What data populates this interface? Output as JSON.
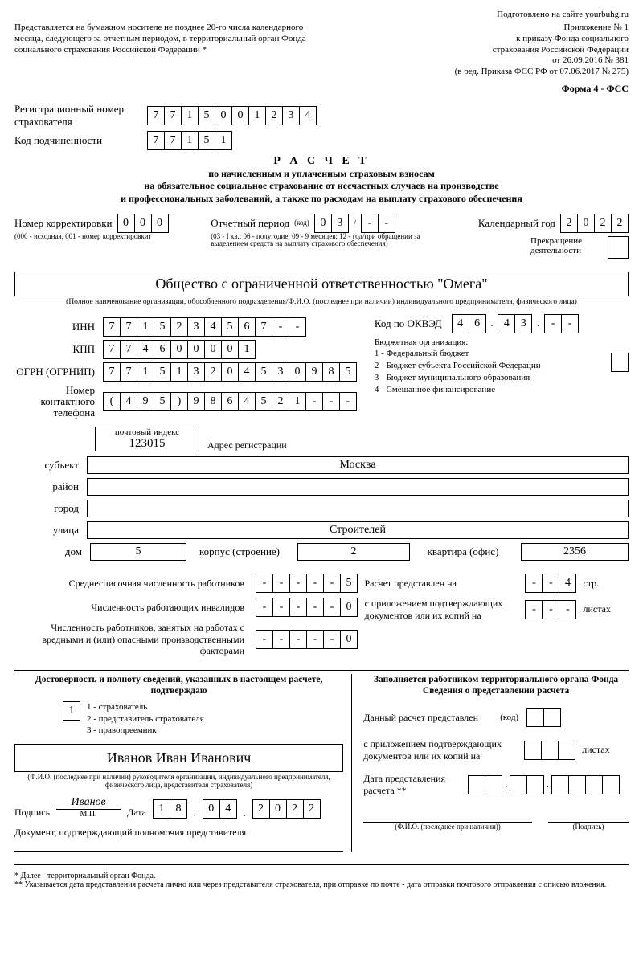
{
  "header": {
    "prepared": "Подготовлено на сайте yourbuhg.ru",
    "left_note": "Представляется на бумажном носителе не позднее 20-го числа календарного месяца, следующего за отчетным периодом, в территориальный орган Фонда социального страхования Российской Федерации *",
    "right_lines": [
      "Приложение № 1",
      "к приказу Фонда социального",
      "страхования Российской Федерации",
      "от 26.09.2016 № 381",
      "(в ред. Приказа ФСС РФ от 07.06.2017 № 275)"
    ],
    "form_name": "Форма 4 - ФСС"
  },
  "reg": {
    "label": "Регистрационный номер страхователя",
    "cells": [
      "7",
      "7",
      "1",
      "5",
      "0",
      "0",
      "1",
      "2",
      "3",
      "4"
    ]
  },
  "sub_code": {
    "label": "Код подчиненности",
    "cells": [
      "7",
      "7",
      "1",
      "5",
      "1"
    ]
  },
  "title": {
    "main": "Р А С Ч Е Т",
    "sub1": "по начисленным и уплаченным страховым взносам",
    "sub2": "на обязательное социальное страхование от несчастных случаев на производстве",
    "sub3": "и профессиональных заболеваний, а также по расходам на выплату страхового обеспечения"
  },
  "correction": {
    "label": "Номер корректировки",
    "cells": [
      "0",
      "0",
      "0"
    ],
    "note": "(000 - исходная, 001 - номер корректировки)"
  },
  "period": {
    "label": "Отчетный период",
    "code_label": "(код)",
    "cells_a": [
      "0",
      "3"
    ],
    "cells_b": [
      "-",
      "-"
    ],
    "note": "(03 - I кв.; 06 - полугодие; 09 - 9 месяцев; 12 - год/при обращении за выделением средств на выплату страхового обеспечения)"
  },
  "year": {
    "label": "Календарный год",
    "cells": [
      "2",
      "0",
      "2",
      "2"
    ]
  },
  "cessation": {
    "label": "Прекращение деятельности"
  },
  "org": {
    "name": "Общество с ограниченной ответственностью \"Омега\"",
    "caption": "(Полное наименование организации, обособленного подразделения/Ф.И.О. (последнее при наличии) индивидуального предпринимателя, физического лица)"
  },
  "inn": {
    "label": "ИНН",
    "cells": [
      "7",
      "7",
      "1",
      "5",
      "2",
      "3",
      "4",
      "5",
      "6",
      "7",
      "-",
      "-"
    ]
  },
  "kpp": {
    "label": "КПП",
    "cells": [
      "7",
      "7",
      "4",
      "6",
      "0",
      "0",
      "0",
      "0",
      "1"
    ]
  },
  "ogrn": {
    "label": "ОГРН (ОГРНИП)",
    "cells": [
      "7",
      "7",
      "1",
      "5",
      "1",
      "3",
      "2",
      "0",
      "4",
      "5",
      "3",
      "0",
      "9",
      "8",
      "5"
    ]
  },
  "phone": {
    "label": "Номер контактного телефона",
    "cells": [
      "(",
      "4",
      "9",
      "5",
      ")",
      "9",
      "8",
      "6",
      "4",
      "5",
      "2",
      "1",
      "-",
      "-",
      "-"
    ]
  },
  "okved": {
    "label": "Код по ОКВЭД",
    "g1": [
      "4",
      "6"
    ],
    "g2": [
      "4",
      "3"
    ],
    "g3": [
      "-",
      "-"
    ]
  },
  "budget": {
    "title": "Бюджетная организация:",
    "items": [
      "1 - Федеральный бюджет",
      "2 - Бюджет субъекта Российской Федерации",
      "3 - Бюджет муниципального образования",
      "4 - Смешанное финансирование"
    ]
  },
  "postal": {
    "label": "почтовый индекс",
    "value": "123015",
    "addr_label": "Адрес регистрации"
  },
  "address": {
    "subject_label": "субъект",
    "subject": "Москва",
    "district_label": "район",
    "district": "",
    "city_label": "город",
    "city": "",
    "street_label": "улица",
    "street": "Строителей",
    "house_label": "дом",
    "house": "5",
    "korpus_label": "корпус (строение)",
    "korpus": "2",
    "flat_label": "квартира (офис)",
    "flat": "2356"
  },
  "counts": {
    "avg_label": "Среднесписочная численность работников",
    "avg": [
      "-",
      "-",
      "-",
      "-",
      "-",
      "5"
    ],
    "inv_label": "Численность работающих инвалидов",
    "inv": [
      "-",
      "-",
      "-",
      "-",
      "-",
      "0"
    ],
    "harm_label": "Численность работников, занятых на работах с вредными и (или) опасными производственными факторами",
    "harm": [
      "-",
      "-",
      "-",
      "-",
      "-",
      "0"
    ],
    "pages_label": "Расчет представлен на",
    "pages": [
      "-",
      "-",
      "4"
    ],
    "pages_suffix": "стр.",
    "docs_label": "с приложением подтверждающих документов или их копий на",
    "docs": [
      "-",
      "-",
      "-"
    ],
    "docs_suffix": "листах"
  },
  "confirm": {
    "title": "Достоверность и полноту сведений, указанных в настоящем расчете, подтверждаю",
    "type_cell": "1",
    "type_items": [
      "1 - страхователь",
      "2 - представитель страхователя",
      "3 - правопреемник"
    ],
    "fio": "Иванов Иван Иванович",
    "fio_caption": "(Ф.И.О. (последнее при наличии) руководителя организации, индивидуального предпринимателя, физического лица, представителя страхователя)",
    "sign_label": "Подпись",
    "sign": "Иванов",
    "mp": "М.П.",
    "date_label": "Дата",
    "date_d": [
      "1",
      "8"
    ],
    "date_m": [
      "0",
      "4"
    ],
    "date_y": [
      "2",
      "0",
      "2",
      "2"
    ],
    "doc_label": "Документ, подтверждающий полномочия представителя"
  },
  "received": {
    "title": "Заполняется работником территориального органа Фонда Сведения о представлении расчета",
    "row1_label": "Данный расчет представлен",
    "row1_code": "(код)",
    "row2_label": "с приложением подтверждающих документов или их копий на",
    "row2_suffix": "листах",
    "row3_label": "Дата представления расчета **",
    "fio_caption": "(Ф.И.О. (последнее при наличии))",
    "sign_caption": "(Подпись)"
  },
  "footnotes": {
    "f1": "*   Далее - территориальный орган Фонда.",
    "f2": "**  Указывается дата представления расчета лично или через представителя страхователя, при отправке по почте - дата отправки почтового отправления с описью вложения."
  }
}
